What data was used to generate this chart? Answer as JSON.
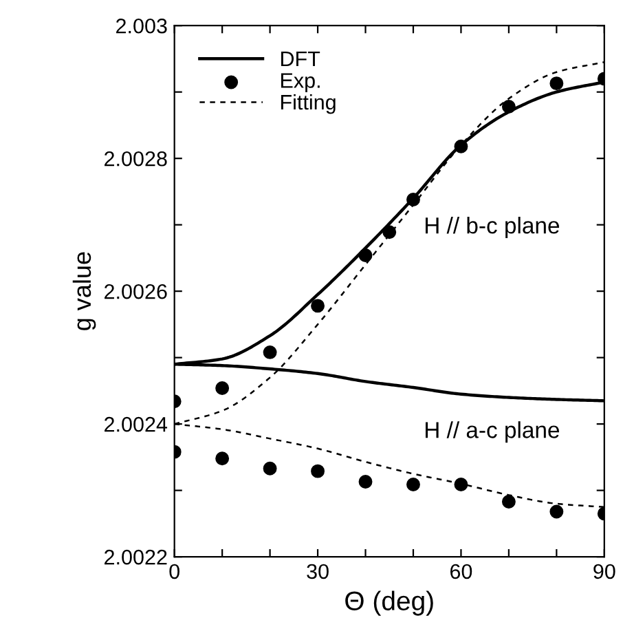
{
  "chart_data": {
    "type": "line",
    "xlabel": "Θ (deg)",
    "ylabel": "g value",
    "x": [
      0,
      10,
      20,
      30,
      40,
      50,
      60,
      70,
      80,
      90
    ],
    "series": [
      {
        "name": "DFT",
        "color": "#000000",
        "line_style": "solid",
        "values": [
          2.00249,
          2.002498,
          2.002533,
          2.002595,
          2.002665,
          2.00274,
          2.00282,
          2.00287,
          2.0029,
          2.002915
        ]
      },
      {
        "color": "#000000",
        "line_style": "solid",
        "values": [
          2.00249,
          2.002488,
          2.002483,
          2.002476,
          2.002464,
          2.002455,
          2.002445,
          2.00244,
          2.002437,
          2.002435
        ]
      },
      {
        "name": "Exp.",
        "type": "scatter",
        "color": "#000000",
        "marker": "circle",
        "x": [
          0,
          10,
          20,
          30,
          40,
          45,
          50,
          60,
          70,
          80,
          90
        ],
        "values": [
          2.002434,
          2.002454,
          2.002508,
          2.002578,
          2.002654,
          2.002689,
          2.002738,
          2.002818,
          2.002878,
          2.002913,
          2.00292
        ]
      },
      {
        "type": "scatter",
        "color": "#000000",
        "marker": "circle",
        "values": [
          2.002358,
          2.002348,
          2.002333,
          2.002329,
          2.002313,
          2.002309,
          2.002309,
          2.002283,
          2.002268,
          2.002265
        ]
      },
      {
        "name": "Fitting",
        "color": "#000000",
        "line_style": "dashed",
        "values": [
          2.0024,
          2.00242,
          2.00247,
          2.00255,
          2.00264,
          2.00273,
          2.00282,
          2.00289,
          2.00293,
          2.002945
        ]
      },
      {
        "color": "#000000",
        "line_style": "dashed",
        "values": [
          2.0024,
          2.002392,
          2.002378,
          2.002363,
          2.002343,
          2.002325,
          2.00231,
          2.002293,
          2.00228,
          2.002275
        ]
      }
    ],
    "annotations": [
      "H // b-c plane",
      "H // a-c plane"
    ],
    "xlim": [
      0,
      90
    ],
    "xticks": [
      0,
      {
        "value": 10,
        "label": null
      },
      {
        "value": 20,
        "label": null
      },
      30,
      {
        "value": 40,
        "label": null
      },
      {
        "value": 50,
        "label": null
      },
      60,
      {
        "value": 70,
        "label": null
      },
      {
        "value": 80,
        "label": null
      },
      90
    ],
    "ylim": [
      2.0022,
      2.003
    ],
    "yticks": [
      2.0022,
      {
        "value": 2.0023,
        "label": null
      },
      2.0024,
      {
        "value": 2.0025,
        "label": null
      },
      2.0026,
      {
        "value": 2.0027,
        "label": null
      },
      2.0028,
      {
        "value": 2.0029,
        "label": null
      },
      2.003
    ],
    "grid": false,
    "legend": "top left"
  }
}
